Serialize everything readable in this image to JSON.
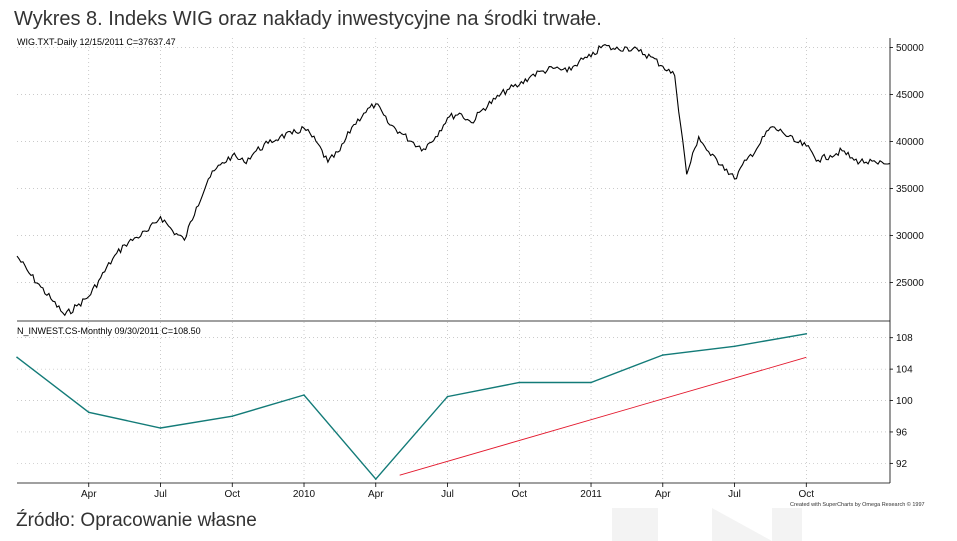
{
  "title": "Wykres 8. Indeks WIG oraz nakłady inwestycyjne na środki trwałe.",
  "source": "Źródło: Opracowanie własne",
  "credit": "Created with SuperCharts by Omega Research © 1997",
  "colors": {
    "price_line": "#000000",
    "invest_line": "#137b78",
    "trend_line": "#e3182d",
    "grid": "#aaaaaa",
    "decor": "#f3f3f3"
  },
  "chart_data": [
    {
      "type": "line",
      "header": "WIG.TXT-Daily  12/15/2011  C=37637.47",
      "series_name": "WIG",
      "frequency": "Daily",
      "yticks": [
        25000,
        30000,
        35000,
        40000,
        45000,
        50000
      ],
      "ytick_labels": [
        "25000",
        "30000",
        "35000",
        "40000",
        "45000",
        "50000"
      ],
      "ylim": [
        21000,
        51000
      ],
      "x": [
        0,
        0.5,
        1,
        1.5,
        2,
        2.5,
        3,
        3.5,
        4,
        4.5,
        5,
        5.5,
        6,
        6.5,
        7,
        7.5,
        8,
        8.5,
        9,
        9.5,
        10,
        10.5,
        11,
        11.5,
        12,
        12.5,
        13,
        13.5,
        14,
        14.5,
        15,
        15.5,
        16,
        16.5,
        17,
        17.5,
        18,
        18.5,
        19,
        19.5,
        20,
        20.5,
        21,
        21.5,
        22,
        22.5,
        23,
        23.5,
        24,
        24.5,
        25,
        25.5,
        26,
        26.5,
        27,
        27.5,
        28,
        28.5,
        29,
        29.5,
        30,
        30.5,
        31,
        31.5,
        32,
        32.5,
        33,
        33.5,
        34,
        34.5,
        35,
        35.5,
        36,
        36.5
      ],
      "values": [
        27800,
        26000,
        24500,
        23000,
        21500,
        22500,
        23500,
        25500,
        27500,
        29000,
        29800,
        30500,
        32000,
        30500,
        29500,
        33000,
        36000,
        37500,
        38500,
        37800,
        39000,
        39800,
        40500,
        40800,
        41400,
        40000,
        37800,
        39000,
        41500,
        43000,
        44000,
        42000,
        41000,
        40000,
        39200,
        40500,
        42500,
        43000,
        42000,
        43500,
        44500,
        45500,
        46000,
        47000,
        47500,
        47800,
        47400,
        48500,
        49000,
        50200,
        49800,
        50000,
        49600,
        49000,
        48000,
        47000,
        36500,
        40500,
        38500,
        37500,
        36000,
        38000,
        39500,
        41500,
        41000,
        40000,
        39500,
        38000,
        38500,
        39000,
        38000,
        37800,
        37600,
        37637
      ]
    },
    {
      "type": "line",
      "header": "N_INWEST.CS-Monthly  09/30/2011  C=108.50",
      "series_name": "N_INWEST.CS",
      "frequency": "Monthly",
      "yticks": [
        92,
        96,
        100,
        104,
        108
      ],
      "ytick_labels": [
        "92",
        "96",
        "100",
        "104",
        "108"
      ],
      "ylim": [
        89.5,
        110
      ],
      "x": [
        0,
        3,
        6,
        9,
        12,
        15,
        18,
        21,
        24,
        27,
        30,
        33
      ],
      "values": [
        105.5,
        98.5,
        96.5,
        98.0,
        100.7,
        90.0,
        100.5,
        102.3,
        102.3,
        105.8,
        106.9,
        108.5
      ],
      "trend": {
        "name": "trend",
        "x": [
          16,
          33
        ],
        "values": [
          90.5,
          105.5
        ]
      }
    }
  ],
  "x_axis": {
    "labels": [
      "Apr",
      "Jul",
      "Oct",
      "2010",
      "Apr",
      "Jul",
      "Oct",
      "2011",
      "Apr",
      "Jul",
      "Oct"
    ],
    "positions": [
      3,
      6,
      9,
      12,
      15,
      18,
      21,
      24,
      27,
      30,
      33
    ],
    "xlim": [
      0,
      36.5
    ]
  }
}
